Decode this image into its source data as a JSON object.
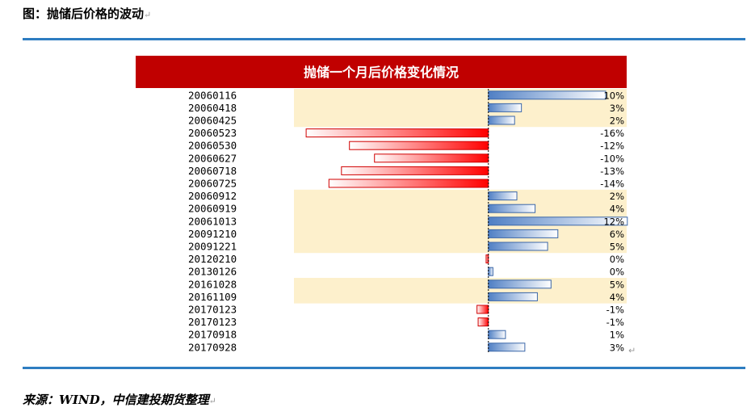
{
  "figure_caption": "图：抛储后价格的波动",
  "source_note": "来源：WIND，中信建投期货整理",
  "colors": {
    "title_band": "#c00000",
    "highlight_band": "#fdf0cc",
    "positive_bar": "#5b8ed0",
    "negative_bar": "#ff0000",
    "rule": "#2e7dc1"
  },
  "chart_data": {
    "type": "bar",
    "orientation": "horizontal",
    "title": "抛储一个月后价格变化情况",
    "unit": "%",
    "xlim": [
      -17,
      12
    ],
    "categories": [
      "20060116",
      "20060418",
      "20060425",
      "20060523",
      "20060530",
      "20060627",
      "20060718",
      "20060725",
      "20060912",
      "20060919",
      "20061013",
      "20091210",
      "20091221",
      "20120210",
      "20130126",
      "20161028",
      "20161109",
      "20170123",
      "20170123",
      "20170918",
      "20170928"
    ],
    "values": [
      10.3,
      2.9,
      2.3,
      -16,
      -12.2,
      -10,
      -12.9,
      -14,
      2.5,
      4.1,
      12.2,
      6.1,
      5.2,
      -0.2,
      0.4,
      5.5,
      4.3,
      -1.0,
      -0.9,
      1.5,
      3.2
    ],
    "labels": [
      "10%",
      "3%",
      "2%",
      "-16%",
      "-12%",
      "-10%",
      "-13%",
      "-14%",
      "2%",
      "4%",
      "12%",
      "6%",
      "5%",
      "0%",
      "0%",
      "5%",
      "4%",
      "-1%",
      "-1%",
      "1%",
      "3%"
    ],
    "highlighted_rows": [
      true,
      true,
      true,
      false,
      false,
      false,
      false,
      false,
      true,
      true,
      true,
      true,
      true,
      false,
      false,
      true,
      true,
      false,
      false,
      false,
      false
    ],
    "grid": false,
    "legend": "none"
  }
}
